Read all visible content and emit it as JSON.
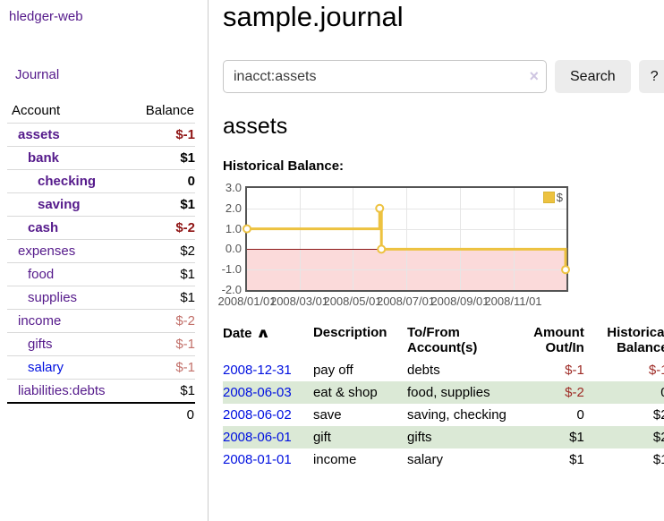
{
  "app": {
    "title": "hledger-web"
  },
  "sidebar": {
    "journal_link": "Journal",
    "accounts_table": {
      "headers": {
        "account": "Account",
        "balance": "Balance"
      },
      "rows": [
        {
          "label": "assets",
          "depth": 1,
          "label_class": "purple bold",
          "balance": "$-1",
          "balance_class": "bold neg"
        },
        {
          "label": "bank",
          "depth": 2,
          "label_class": "purple bold",
          "balance": "$1",
          "balance_class": "bold"
        },
        {
          "label": "checking",
          "depth": 3,
          "label_class": "purple bold",
          "balance": "0",
          "balance_class": "bold"
        },
        {
          "label": "saving",
          "depth": 3,
          "label_class": "purple bold",
          "balance": "$1",
          "balance_class": "bold"
        },
        {
          "label": "cash",
          "depth": 2,
          "label_class": "purple bold",
          "balance": "$-2",
          "balance_class": "bold neg"
        },
        {
          "label": "expenses",
          "depth": 1,
          "label_class": "purple",
          "balance": "$2",
          "balance_class": ""
        },
        {
          "label": "food",
          "depth": 2,
          "label_class": "purple",
          "balance": "$1",
          "balance_class": ""
        },
        {
          "label": "supplies",
          "depth": 2,
          "label_class": "purple",
          "balance": "$1",
          "balance_class": ""
        },
        {
          "label": "income",
          "depth": 1,
          "label_class": "purple",
          "balance": "$-2",
          "balance_class": "dimneg"
        },
        {
          "label": "gifts",
          "depth": 2,
          "label_class": "purple",
          "balance": "$-1",
          "balance_class": "dimneg"
        },
        {
          "label": "salary",
          "depth": 2,
          "label_class": "blue",
          "balance": "$-1",
          "balance_class": "dimneg"
        },
        {
          "label": "liabilities:debts",
          "depth": 1,
          "label_class": "purple",
          "balance": "$1",
          "balance_class": ""
        }
      ],
      "total": "0"
    }
  },
  "header": {
    "title": "sample.journal"
  },
  "search": {
    "value": "inacct:assets",
    "clear_icon": "×",
    "search_button": "Search",
    "help_button": "?"
  },
  "account_page": {
    "heading": "assets",
    "chart_title": "Historical Balance:"
  },
  "chart_data": {
    "type": "line",
    "title": "Historical Balance:",
    "step": true,
    "ylim": [
      -2,
      3
    ],
    "x_range": [
      "2008-01-01",
      "2009-01-01"
    ],
    "y_ticks": [
      {
        "label": "3.0",
        "value": 3
      },
      {
        "label": "2.0",
        "value": 2
      },
      {
        "label": "1.0",
        "value": 1
      },
      {
        "label": "0.0",
        "value": 0
      },
      {
        "label": "-1.0",
        "value": -1
      },
      {
        "label": "-2.0",
        "value": -2
      }
    ],
    "x_ticks": [
      {
        "label": "2008/01/01",
        "date": "2008-01-01"
      },
      {
        "label": "2008/03/01",
        "date": "2008-03-01"
      },
      {
        "label": "2008/05/01",
        "date": "2008-05-01"
      },
      {
        "label": "2008/07/01",
        "date": "2008-07-01"
      },
      {
        "label": "2008/09/01",
        "date": "2008-09-01"
      },
      {
        "label": "2008/11/01",
        "date": "2008-11-01"
      }
    ],
    "series": [
      {
        "name": "$",
        "color": "#edc240",
        "points": [
          {
            "date": "2008-01-01",
            "value": 1
          },
          {
            "date": "2008-06-01",
            "value": 2
          },
          {
            "date": "2008-06-03",
            "value": 0
          },
          {
            "date": "2008-12-31",
            "value": -1
          }
        ]
      }
    ],
    "grid": true,
    "legend_position": "top-right",
    "negative_region_color": "#fbdada",
    "zero_line_color": "#8c1a1a"
  },
  "register_table": {
    "headers": {
      "date": "Date",
      "description": "Description",
      "accounts": "To/From Account(s)",
      "amount": "Amount Out/In",
      "balance": "Historical Balance"
    },
    "sort_icon": "∧",
    "rows": [
      {
        "date": "2008-12-31",
        "description": "pay off",
        "accounts": "debts",
        "amount": "$-1",
        "amount_class": "tneg",
        "balance": "$-1",
        "balance_class": "tneg"
      },
      {
        "date": "2008-06-03",
        "description": "eat & shop",
        "accounts": "food, supplies",
        "amount": "$-2",
        "amount_class": "tneg",
        "balance": "0",
        "balance_class": ""
      },
      {
        "date": "2008-06-02",
        "description": "save",
        "accounts": "saving, checking",
        "amount": "0",
        "amount_class": "",
        "balance": "$2",
        "balance_class": ""
      },
      {
        "date": "2008-06-01",
        "description": "gift",
        "accounts": "gifts",
        "amount": "$1",
        "amount_class": "",
        "balance": "$2",
        "balance_class": ""
      },
      {
        "date": "2008-01-01",
        "description": "income",
        "accounts": "salary",
        "amount": "$1",
        "amount_class": "",
        "balance": "$1",
        "balance_class": ""
      }
    ]
  }
}
